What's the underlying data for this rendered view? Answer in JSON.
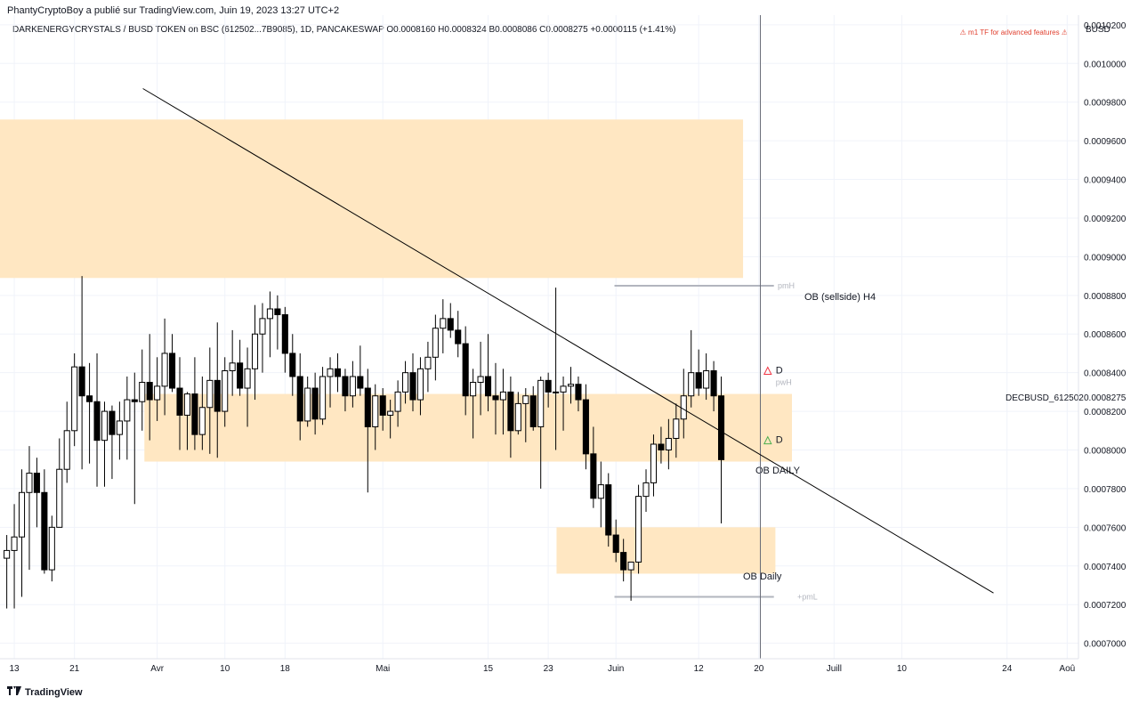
{
  "header": {
    "credit": "PhantyCryptoBoy a publié sur TradingView.com, Juin 19, 2023 13:27 UTC+2",
    "symbol_line": "DARKENERGYCRYSTALS / BUSD TOKEN on BSC (612502...7B9085), 1D, PANCAKESWAP  O0.0008160  H0.0008324  B0.0008086  C0.0008275  +0.0000115 (+1.41%)",
    "warning": "⚠ m1 TF for advanced features ⚠",
    "currency": "BUSD"
  },
  "footer": {
    "logo_text": "TradingView",
    "logo_icon": "tradingview-logo-icon"
  },
  "colors": {
    "zone": "#ffe7c2",
    "up": "#ffffff",
    "down": "#000000",
    "grid": "#f0f3fa",
    "trend": "#000000",
    "level": "#b2b5be",
    "marker_red": "#f23645",
    "marker_green": "#4caf50"
  },
  "chart_data": {
    "type": "candlestick",
    "symbol_label": "DECBUSD_612502",
    "last_price": "0.0008275",
    "price_ticks": [
      "0.0010200",
      "0.0010000",
      "0.0009800",
      "0.0009600",
      "0.0009400",
      "0.0009200",
      "0.0009000",
      "0.0008800",
      "0.0008600",
      "0.0008400",
      "0.0008200",
      "0.0008000",
      "0.0007800",
      "0.0007600",
      "0.0007400",
      "0.0007200",
      "0.0007000"
    ],
    "date_ticks": [
      {
        "label": "13",
        "day": 0
      },
      {
        "label": "21",
        "day": 8
      },
      {
        "label": "Avr",
        "day": 19
      },
      {
        "label": "10",
        "day": 28
      },
      {
        "label": "18",
        "day": 36
      },
      {
        "label": "Mai",
        "day": 49
      },
      {
        "label": "15",
        "day": 63
      },
      {
        "label": "23",
        "day": 71
      },
      {
        "label": "Juin",
        "day": 80
      },
      {
        "label": "12",
        "day": 91
      },
      {
        "label": "20",
        "day": 99
      },
      {
        "label": "Juill",
        "day": 109
      },
      {
        "label": "10",
        "day": 118
      },
      {
        "label": "24",
        "day": 132
      },
      {
        "label": "Aoû",
        "day": 140
      }
    ],
    "ylim": [
      0.000692,
      0.001025
    ],
    "xlim_days": [
      -1.9,
      141.5
    ],
    "candles": [
      {
        "d": -1,
        "o": 0.000744,
        "h": 0.000756,
        "l": 0.000718,
        "c": 0.000748
      },
      {
        "d": 0,
        "o": 0.000748,
        "h": 0.000772,
        "l": 0.000718,
        "c": 0.000755
      },
      {
        "d": 1,
        "o": 0.000755,
        "h": 0.00079,
        "l": 0.000724,
        "c": 0.000778
      },
      {
        "d": 2,
        "o": 0.000778,
        "h": 0.000802,
        "l": 0.000738,
        "c": 0.000788
      },
      {
        "d": 3,
        "o": 0.000788,
        "h": 0.000796,
        "l": 0.00076,
        "c": 0.000778
      },
      {
        "d": 4,
        "o": 0.000778,
        "h": 0.00079,
        "l": 0.000736,
        "c": 0.000738
      },
      {
        "d": 5,
        "o": 0.000738,
        "h": 0.000766,
        "l": 0.000732,
        "c": 0.00076
      },
      {
        "d": 6,
        "o": 0.00076,
        "h": 0.000806,
        "l": 0.00076,
        "c": 0.00079
      },
      {
        "d": 7,
        "o": 0.00079,
        "h": 0.000825,
        "l": 0.000783,
        "c": 0.00081
      },
      {
        "d": 8,
        "o": 0.00081,
        "h": 0.00085,
        "l": 0.000802,
        "c": 0.000843
      },
      {
        "d": 9,
        "o": 0.000843,
        "h": 0.00089,
        "l": 0.00079,
        "c": 0.000828
      },
      {
        "d": 10,
        "o": 0.000828,
        "h": 0.000845,
        "l": 0.000793,
        "c": 0.000825
      },
      {
        "d": 11,
        "o": 0.000825,
        "h": 0.00085,
        "l": 0.000781,
        "c": 0.000805
      },
      {
        "d": 12,
        "o": 0.000805,
        "h": 0.000825,
        "l": 0.000781,
        "c": 0.00082
      },
      {
        "d": 13,
        "o": 0.00082,
        "h": 0.000823,
        "l": 0.000785,
        "c": 0.000808
      },
      {
        "d": 14,
        "o": 0.000808,
        "h": 0.000825,
        "l": 0.000795,
        "c": 0.000815
      },
      {
        "d": 15,
        "o": 0.000815,
        "h": 0.000838,
        "l": 0.000795,
        "c": 0.000826
      },
      {
        "d": 16,
        "o": 0.000826,
        "h": 0.00084,
        "l": 0.000772,
        "c": 0.000825
      },
      {
        "d": 17,
        "o": 0.000825,
        "h": 0.000852,
        "l": 0.00081,
        "c": 0.000835
      },
      {
        "d": 18,
        "o": 0.000835,
        "h": 0.00086,
        "l": 0.000805,
        "c": 0.000826
      },
      {
        "d": 19,
        "o": 0.000826,
        "h": 0.000848,
        "l": 0.000815,
        "c": 0.000833
      },
      {
        "d": 20,
        "o": 0.000833,
        "h": 0.000868,
        "l": 0.000818,
        "c": 0.00085
      },
      {
        "d": 21,
        "o": 0.00085,
        "h": 0.00086,
        "l": 0.00083,
        "c": 0.000832
      },
      {
        "d": 22,
        "o": 0.000832,
        "h": 0.000848,
        "l": 0.0008,
        "c": 0.000818
      },
      {
        "d": 23,
        "o": 0.000818,
        "h": 0.00083,
        "l": 0.0008,
        "c": 0.000829
      },
      {
        "d": 24,
        "o": 0.000829,
        "h": 0.000848,
        "l": 0.0008,
        "c": 0.000808
      },
      {
        "d": 25,
        "o": 0.000808,
        "h": 0.000838,
        "l": 0.0008,
        "c": 0.000822
      },
      {
        "d": 26,
        "o": 0.000822,
        "h": 0.000853,
        "l": 0.000798,
        "c": 0.000836
      },
      {
        "d": 27,
        "o": 0.000836,
        "h": 0.000866,
        "l": 0.000796,
        "c": 0.00082
      },
      {
        "d": 28,
        "o": 0.00082,
        "h": 0.000848,
        "l": 0.000812,
        "c": 0.000841
      },
      {
        "d": 29,
        "o": 0.000841,
        "h": 0.000862,
        "l": 0.000828,
        "c": 0.000845
      },
      {
        "d": 30,
        "o": 0.000845,
        "h": 0.000857,
        "l": 0.000828,
        "c": 0.000832
      },
      {
        "d": 31,
        "o": 0.000832,
        "h": 0.000853,
        "l": 0.000812,
        "c": 0.000842
      },
      {
        "d": 32,
        "o": 0.000842,
        "h": 0.000875,
        "l": 0.000826,
        "c": 0.00086
      },
      {
        "d": 33,
        "o": 0.00086,
        "h": 0.000876,
        "l": 0.00084,
        "c": 0.000868
      },
      {
        "d": 34,
        "o": 0.000868,
        "h": 0.000882,
        "l": 0.000848,
        "c": 0.000873
      },
      {
        "d": 35,
        "o": 0.000873,
        "h": 0.00088,
        "l": 0.000852,
        "c": 0.00087
      }
    ],
    "zones": [
      {
        "label": "OB (sellside) H4",
        "d0": -1.9,
        "d1": 96.9,
        "p0": 0.000889,
        "p1": 0.000971
      },
      {
        "label": "OB DAILY",
        "d0": 17.3,
        "d1": 103.4,
        "p0": 0.000794,
        "p1": 0.000829
      },
      {
        "label": "OB Daily",
        "d0": 72.1,
        "d1": 101.2,
        "p0": 0.000736,
        "p1": 0.00076
      }
    ],
    "trendline": {
      "d0": 17.1,
      "p0": 0.000987,
      "d1": 130.2,
      "p0b": 0.000726
    },
    "levels": [
      {
        "label": "pmH",
        "d0": 79.8,
        "d1": 101.0,
        "p": 0.000885
      },
      {
        "label": "+pmL",
        "d0": 79.8,
        "d1": 101.0,
        "p": 0.000724
      }
    ],
    "markers": [
      {
        "label": "D",
        "d": 100.3,
        "p": 0.000841,
        "kind": "red"
      },
      {
        "label": "pwH",
        "d": 100.3,
        "p": 0.000835,
        "kind": "grey"
      },
      {
        "label": "D",
        "d": 100.3,
        "p": 0.000805,
        "kind": "green"
      }
    ],
    "cursor_day": 99.2
  }
}
